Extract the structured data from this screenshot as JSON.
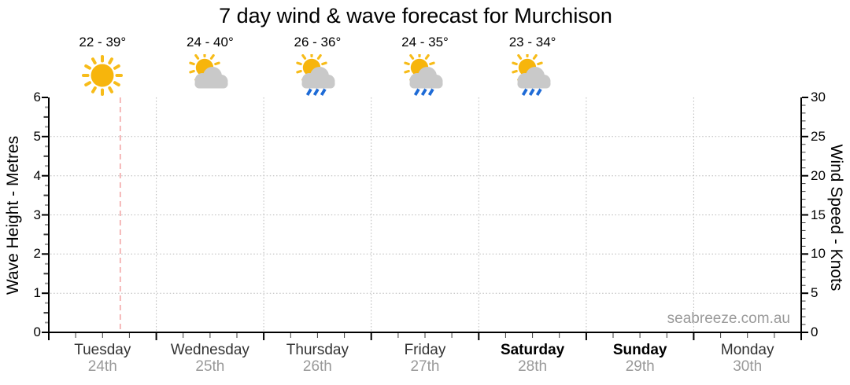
{
  "watermark": "seabreeze.com.au",
  "colors": {
    "sun": "#F7B50C",
    "sun_ray": "#F7BC1A",
    "cloud": "#C9C9C9",
    "rain": "#1E6BD6",
    "axis": "#000000",
    "grid": "#B8B8B8",
    "minor_tick": "#9A9A9A",
    "half_tick": "#3A3A3A",
    "now_line": "#F2A6A6",
    "day_label": "#333333",
    "weekend_label": "#000000",
    "date_label": "#999999",
    "watermark_gray": "#9A9A9A"
  },
  "chart_data": {
    "type": "line",
    "title": "7 day wind & wave forecast for Murchison",
    "days": [
      {
        "name": "Tuesday",
        "date": "24th",
        "temp": "22 - 39°",
        "icon": "sunny",
        "weekend": false
      },
      {
        "name": "Wednesday",
        "date": "25th",
        "temp": "24 - 40°",
        "icon": "partly-cloudy",
        "weekend": false
      },
      {
        "name": "Thursday",
        "date": "26th",
        "temp": "26 - 36°",
        "icon": "showers",
        "weekend": false
      },
      {
        "name": "Friday",
        "date": "27th",
        "temp": "24 - 35°",
        "icon": "showers",
        "weekend": false
      },
      {
        "name": "Saturday",
        "date": "28th",
        "temp": "23 - 34°",
        "icon": "showers",
        "weekend": true
      },
      {
        "name": "Sunday",
        "date": "29th",
        "temp": null,
        "icon": null,
        "weekend": true
      },
      {
        "name": "Monday",
        "date": "30th",
        "temp": null,
        "icon": null,
        "weekend": false
      }
    ],
    "left_axis": {
      "label": "Wave Height - Metres",
      "range": [
        0,
        6
      ],
      "ticks": [
        0,
        1,
        2,
        3,
        4,
        5,
        6
      ],
      "minor_tick": 0.25,
      "gridlines": true
    },
    "right_axis": {
      "label": "Wind Speed - Knots",
      "range": [
        0,
        30
      ],
      "ticks": [
        0,
        5,
        10,
        15,
        20,
        25,
        30
      ],
      "minor_tick": 1
    },
    "x_axis": {
      "minor_ticks_per_day": 4,
      "day_boundary_gridlines": true
    },
    "series": [],
    "current_time_marker": {
      "x_fraction": 0.095,
      "style": "dashed"
    }
  }
}
